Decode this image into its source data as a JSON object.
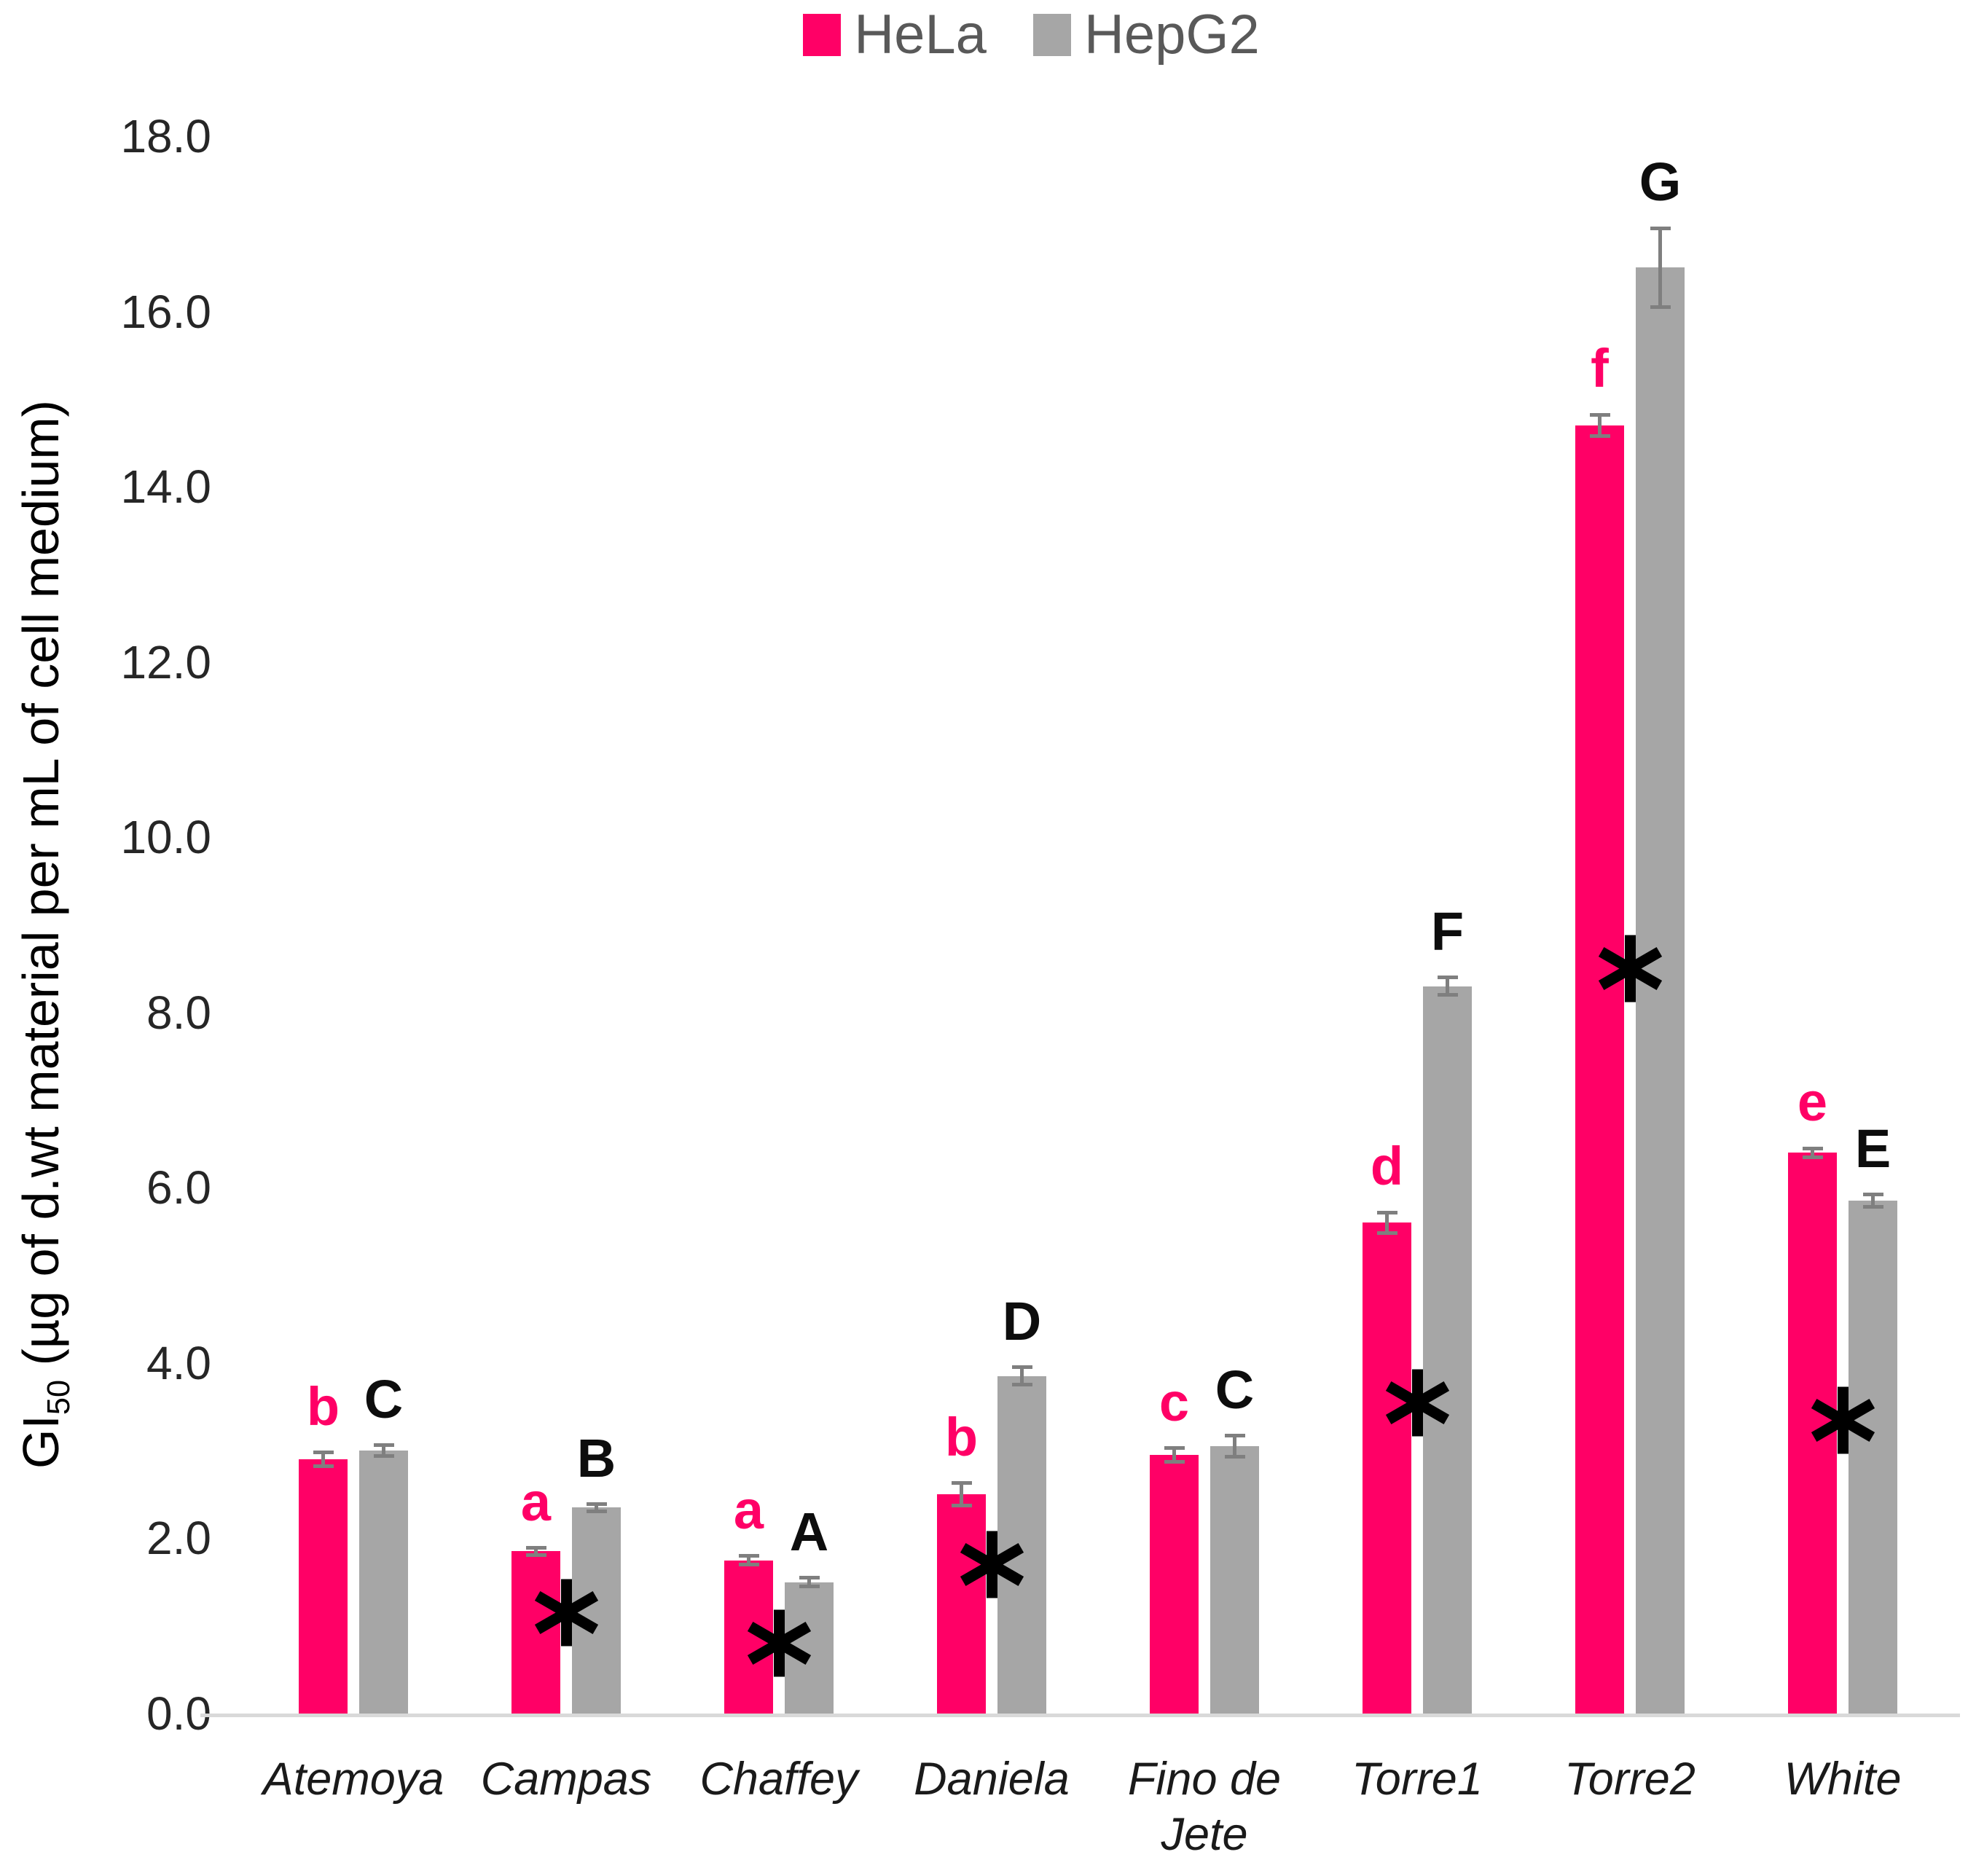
{
  "chart_data": {
    "type": "bar",
    "title": "",
    "ylabel": "GI50 (µg of d.wt material per mL of cell medium)",
    "ylabel_parts": {
      "prefix": "GI",
      "sub": "50",
      "rest": " (µg of d.wt material per mL of cell medium)"
    },
    "ylim": [
      0.0,
      18.0
    ],
    "ytick_step": 2.0,
    "ytick_decimals": 1,
    "grid": false,
    "legend_position": "top-center",
    "legend": [
      {
        "label": "HeLa",
        "color": "#FF0066"
      },
      {
        "label": "HepG2",
        "color": "#A6A6A6"
      }
    ],
    "categories": [
      "Atemoya",
      "Campas",
      "Chaffey",
      "Daniela",
      "Fino de Jete",
      "Torre1",
      "Torre2",
      "White"
    ],
    "series": [
      {
        "name": "HeLa",
        "color": "#FF0066",
        "letter_color": "#FF0066",
        "values": [
          2.9,
          1.85,
          1.75,
          2.5,
          2.95,
          5.6,
          14.7,
          6.4
        ],
        "errors": [
          0.08,
          0.04,
          0.05,
          0.13,
          0.08,
          0.12,
          0.12,
          0.05
        ],
        "letters": [
          "b",
          "a",
          "a",
          "b",
          "c",
          "d",
          "f",
          "e"
        ]
      },
      {
        "name": "HepG2",
        "color": "#A6A6A6",
        "letter_color": "#0d0d0d",
        "values": [
          3.0,
          2.35,
          1.5,
          3.85,
          3.05,
          8.3,
          16.5,
          5.85
        ],
        "errors": [
          0.06,
          0.04,
          0.05,
          0.1,
          0.12,
          0.1,
          0.45,
          0.07
        ],
        "letters": [
          "C",
          "B",
          "A",
          "D",
          "C",
          "F",
          "G",
          "E"
        ]
      }
    ],
    "significance_asterisks": [
      null,
      1.15,
      0.8,
      1.7,
      null,
      3.55,
      8.5,
      3.35
    ],
    "asterisk_color": "#000000"
  }
}
